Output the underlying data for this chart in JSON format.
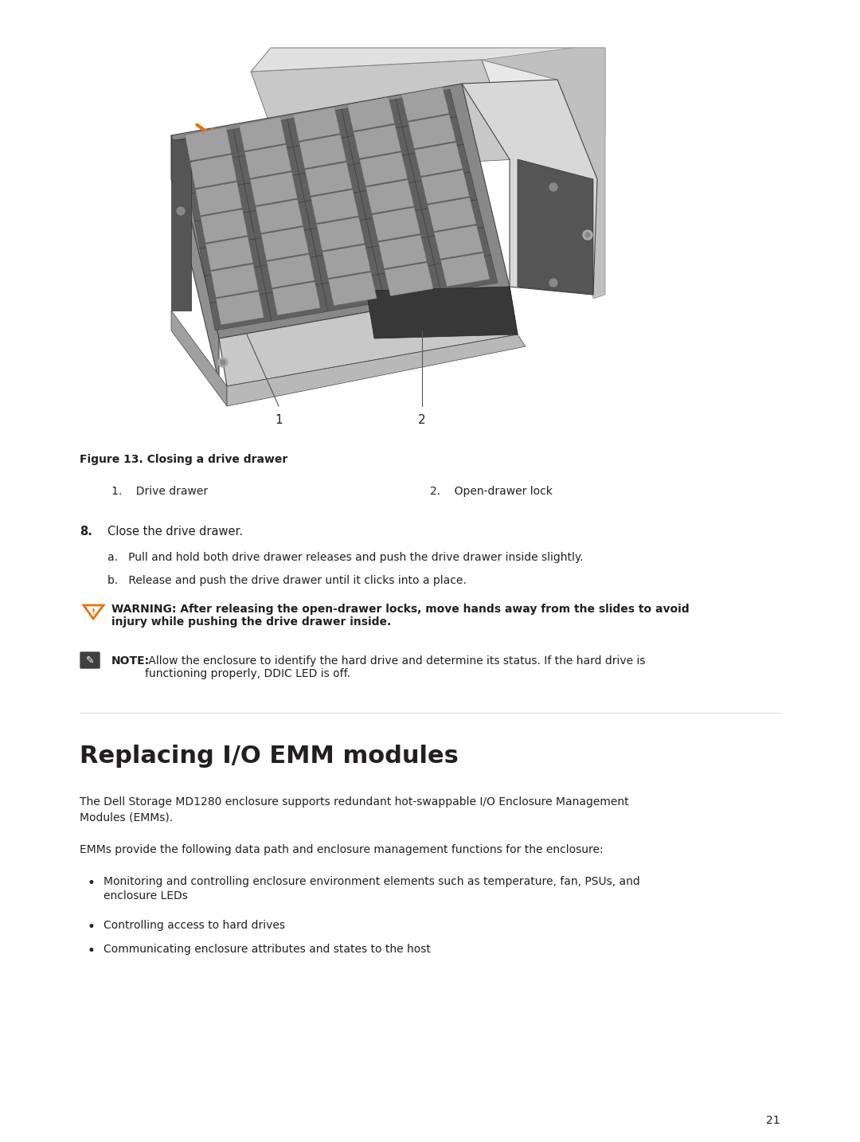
{
  "bg_color": "#ffffff",
  "fig_width": 10.8,
  "fig_height": 14.34,
  "figure_caption": "Figure 13. Closing a drive drawer",
  "label1": "Drive drawer",
  "label2": "Open-drawer lock",
  "step8_text": "Close the drive drawer.",
  "step8a": "Pull and hold both drive drawer releases and push the drive drawer inside slightly.",
  "step8b": "Release and push the drive drawer until it clicks into a place.",
  "warning_bold": "WARNING: After releasing the open-drawer locks, move hands away from the slides to avoid\ninjury while pushing the drive drawer inside.",
  "note_label": "NOTE:",
  "note_text": " Allow the enclosure to identify the hard drive and determine its status. If the hard drive is\nfunctioning properly, DDIC LED is off.",
  "section_title": "Replacing I/O EMM modules",
  "para1": "The Dell Storage MD1280 enclosure supports redundant hot-swappable I/O Enclosure Management\nModules (EMMs).",
  "para2": "EMMs provide the following data path and enclosure management functions for the enclosure:",
  "bullet1": "Monitoring and controlling enclosure environment elements such as temperature, fan, PSUs, and\nenclosure LEDs",
  "bullet2": "Controlling access to hard drives",
  "bullet3": "Communicating enclosure attributes and states to the host",
  "page_num": "21",
  "orange_color": "#E8730A",
  "blue_color": "#1F6BB0",
  "text_color": "#231F20",
  "warning_icon_color": "#E8730A",
  "note_icon_color": "#404040"
}
